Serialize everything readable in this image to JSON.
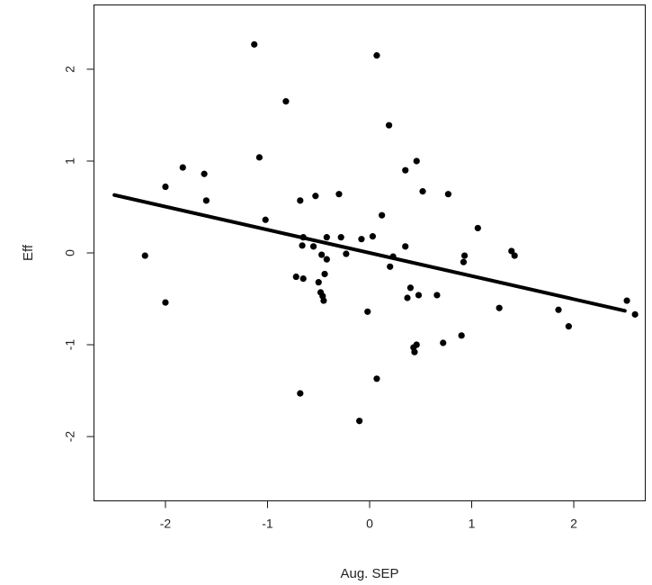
{
  "chart_data": {
    "type": "scatter",
    "title": "",
    "xlabel": "Aug. SEP",
    "ylabel": "Eff",
    "xlim": [
      -2.7,
      2.7
    ],
    "ylim": [
      -2.7,
      2.7
    ],
    "x_ticks": [
      -2,
      -1,
      0,
      1,
      2
    ],
    "x_tick_labels": [
      "-2",
      "-1",
      "0",
      "1",
      "2"
    ],
    "y_ticks": [
      -2,
      -1,
      0,
      1,
      2
    ],
    "y_tick_labels": [
      "-2",
      "-1",
      "0",
      "1",
      "2"
    ],
    "grid": false,
    "legend": "none",
    "point_color": "#000000",
    "points": [
      [
        -2.2,
        -0.03
      ],
      [
        -2.0,
        0.72
      ],
      [
        -2.0,
        -0.54
      ],
      [
        -1.83,
        0.93
      ],
      [
        -1.62,
        0.86
      ],
      [
        -1.6,
        0.57
      ],
      [
        -1.13,
        2.27
      ],
      [
        -1.08,
        1.04
      ],
      [
        -1.02,
        0.36
      ],
      [
        -0.82,
        1.65
      ],
      [
        -0.72,
        -0.26
      ],
      [
        -0.68,
        0.57
      ],
      [
        -0.68,
        -1.53
      ],
      [
        -0.66,
        0.08
      ],
      [
        -0.65,
        0.17
      ],
      [
        -0.65,
        -0.28
      ],
      [
        -0.55,
        0.07
      ],
      [
        -0.53,
        0.62
      ],
      [
        -0.5,
        -0.32
      ],
      [
        -0.48,
        -0.43
      ],
      [
        -0.47,
        -0.02
      ],
      [
        -0.46,
        -0.47
      ],
      [
        -0.45,
        -0.52
      ],
      [
        -0.44,
        -0.23
      ],
      [
        -0.42,
        0.17
      ],
      [
        -0.42,
        -0.07
      ],
      [
        -0.3,
        0.64
      ],
      [
        -0.28,
        0.17
      ],
      [
        -0.23,
        -0.01
      ],
      [
        -0.1,
        -1.83
      ],
      [
        -0.08,
        0.15
      ],
      [
        -0.02,
        -0.64
      ],
      [
        0.03,
        0.18
      ],
      [
        0.07,
        2.15
      ],
      [
        0.07,
        -1.37
      ],
      [
        0.12,
        0.41
      ],
      [
        0.19,
        1.39
      ],
      [
        0.2,
        -0.15
      ],
      [
        0.23,
        -0.04
      ],
      [
        0.35,
        0.9
      ],
      [
        0.35,
        0.07
      ],
      [
        0.37,
        -0.49
      ],
      [
        0.4,
        -0.38
      ],
      [
        0.43,
        -1.03
      ],
      [
        0.44,
        -1.08
      ],
      [
        0.46,
        1.0
      ],
      [
        0.46,
        -1.0
      ],
      [
        0.48,
        -0.46
      ],
      [
        0.52,
        0.67
      ],
      [
        0.66,
        -0.46
      ],
      [
        0.72,
        -0.98
      ],
      [
        0.77,
        0.64
      ],
      [
        0.9,
        -0.9
      ],
      [
        0.92,
        -0.1
      ],
      [
        0.93,
        -0.03
      ],
      [
        1.06,
        0.27
      ],
      [
        1.27,
        -0.6
      ],
      [
        1.39,
        0.02
      ],
      [
        1.42,
        -0.03
      ],
      [
        1.85,
        -0.62
      ],
      [
        1.95,
        -0.8
      ],
      [
        2.52,
        -0.52
      ],
      [
        2.6,
        -0.67
      ]
    ],
    "trend_line": {
      "x": [
        -2.5,
        2.5
      ],
      "y": [
        0.63,
        -0.63
      ]
    }
  }
}
